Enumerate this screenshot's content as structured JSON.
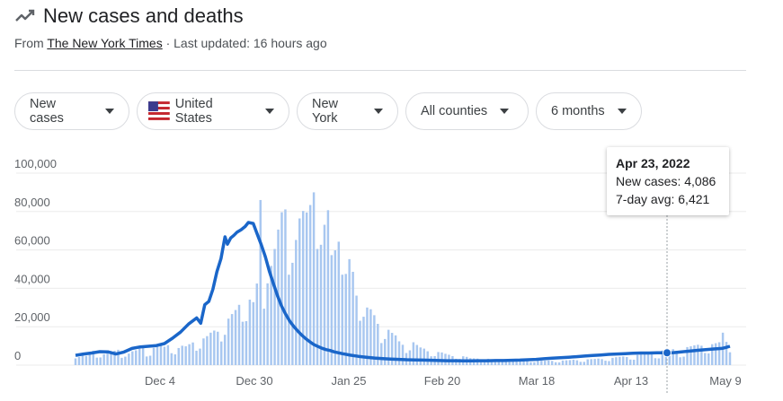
{
  "header": {
    "title": "New cases and deaths",
    "source_prefix": "From ",
    "source_link": "The New York Times",
    "updated": " · Last updated: 16 hours ago"
  },
  "filters": [
    {
      "label": "New cases",
      "icon": "chevron-down-icon"
    },
    {
      "label": "United States",
      "icon": "us-flag-icon"
    },
    {
      "label": "New York",
      "icon": "chevron-down-icon"
    },
    {
      "label": "All counties",
      "icon": "chevron-down-icon"
    },
    {
      "label": "6 months",
      "icon": "chevron-down-icon"
    }
  ],
  "tooltip": {
    "date": "Apr 23, 2022",
    "new_cases": "New cases: 4,086",
    "avg": "7-day avg: 6,421"
  },
  "colors": {
    "bar": "#a8c7f0",
    "line": "#1a66c9",
    "grid": "#ebebeb"
  },
  "chart_data": {
    "type": "bar",
    "title": "New cases and deaths",
    "ylim": [
      0,
      100000
    ],
    "yticks": [
      "0",
      "20,000",
      "40,000",
      "60,000",
      "80,000",
      "100,000"
    ],
    "xticks": [
      "Dec 4",
      "Dec 30",
      "Jan 25",
      "Feb 20",
      "Mar 18",
      "Apr 13",
      "May 9"
    ],
    "daily_cases": [
      3500,
      4200,
      5300,
      4800,
      6100,
      7400,
      3900,
      4000,
      5700,
      6800,
      6500,
      7500,
      8000,
      3800,
      4400,
      6000,
      7200,
      7700,
      8900,
      9800,
      4500,
      4900,
      9000,
      10500,
      11200,
      9600,
      10400,
      6200,
      5600,
      8900,
      10100,
      9800,
      10900,
      11800,
      7500,
      8600,
      13900,
      15100,
      16900,
      18000,
      17400,
      12300,
      15800,
      24200,
      26600,
      28700,
      31400,
      22600,
      22900,
      34100,
      32800,
      42500,
      86000,
      29400,
      42600,
      51700,
      60500,
      70600,
      79600,
      81100,
      47100,
      53300,
      65200,
      76400,
      80300,
      79500,
      83400,
      90000,
      60500,
      62700,
      73100,
      80700,
      57300,
      59800,
      64300,
      47100,
      47500,
      55200,
      48600,
      36200,
      23100,
      25200,
      30000,
      29100,
      26000,
      21500,
      11500,
      13600,
      18400,
      16800,
      15500,
      12400,
      10600,
      6300,
      7700,
      11900,
      10500,
      9200,
      8600,
      7200,
      4600,
      4700,
      6800,
      6600,
      5900,
      5400,
      4700,
      3300,
      3200,
      4600,
      4300,
      3600,
      3500,
      3400,
      2300,
      2200,
      3300,
      2900,
      2800,
      2700,
      2500,
      1700,
      1600,
      2500,
      2400,
      2400,
      2300,
      2200,
      1500,
      1500,
      2400,
      2300,
      2300,
      2400,
      2200,
      1500,
      1400,
      2400,
      2500,
      2600,
      2800,
      2500,
      1700,
      1700,
      3000,
      3100,
      3200,
      3400,
      3100,
      2300,
      2100,
      3800,
      4100,
      4300,
      4500,
      4200,
      2900,
      2800,
      5300,
      5600,
      5800,
      6400,
      5700,
      3600,
      3500,
      7600,
      7800,
      7900,
      8300,
      7400,
      4086,
      4400,
      9400,
      9800,
      10300,
      10600,
      10100,
      6300,
      6100,
      10900,
      11400,
      11900,
      16900,
      12100,
      6700
    ],
    "avg_series": [
      [
        0,
        5100
      ],
      [
        10,
        5800
      ],
      [
        20,
        6300
      ],
      [
        30,
        7000
      ],
      [
        40,
        6900
      ],
      [
        50,
        5800
      ],
      [
        60,
        6800
      ],
      [
        70,
        8700
      ],
      [
        80,
        9500
      ],
      [
        90,
        9800
      ],
      [
        100,
        10200
      ],
      [
        110,
        11200
      ],
      [
        120,
        14000
      ],
      [
        130,
        17200
      ],
      [
        140,
        21400
      ],
      [
        150,
        24600
      ],
      [
        155,
        21800
      ],
      [
        160,
        31500
      ],
      [
        165,
        33200
      ],
      [
        170,
        39500
      ],
      [
        175,
        48700
      ],
      [
        180,
        55400
      ],
      [
        185,
        66800
      ],
      [
        188,
        63000
      ],
      [
        192,
        66200
      ],
      [
        196,
        67600
      ],
      [
        200,
        69300
      ],
      [
        205,
        70500
      ],
      [
        210,
        72200
      ],
      [
        214,
        74300
      ],
      [
        220,
        73800
      ],
      [
        225,
        68200
      ],
      [
        230,
        62600
      ],
      [
        235,
        56400
      ],
      [
        240,
        48800
      ],
      [
        245,
        42400
      ],
      [
        250,
        36100
      ],
      [
        255,
        30800
      ],
      [
        260,
        26600
      ],
      [
        265,
        23000
      ],
      [
        270,
        20200
      ],
      [
        275,
        17800
      ],
      [
        280,
        15600
      ],
      [
        285,
        13800
      ],
      [
        290,
        12200
      ],
      [
        295,
        10700
      ],
      [
        300,
        9700
      ],
      [
        305,
        8800
      ],
      [
        310,
        8100
      ],
      [
        315,
        7600
      ],
      [
        320,
        6900
      ],
      [
        330,
        6000
      ],
      [
        340,
        5200
      ],
      [
        350,
        4600
      ],
      [
        360,
        4100
      ],
      [
        370,
        3700
      ],
      [
        380,
        3400
      ],
      [
        390,
        3200
      ],
      [
        400,
        3000
      ],
      [
        410,
        2800
      ],
      [
        420,
        2700
      ],
      [
        430,
        2600
      ],
      [
        440,
        2500
      ],
      [
        450,
        2400
      ],
      [
        460,
        2300
      ],
      [
        470,
        2300
      ],
      [
        480,
        2200
      ],
      [
        490,
        2200
      ],
      [
        500,
        2300
      ],
      [
        510,
        2300
      ],
      [
        520,
        2400
      ],
      [
        530,
        2400
      ],
      [
        540,
        2500
      ],
      [
        550,
        2600
      ],
      [
        560,
        2800
      ],
      [
        570,
        3000
      ],
      [
        580,
        3300
      ],
      [
        590,
        3600
      ],
      [
        600,
        3900
      ],
      [
        610,
        4100
      ],
      [
        620,
        4400
      ],
      [
        630,
        4700
      ],
      [
        640,
        5000
      ],
      [
        650,
        5300
      ],
      [
        660,
        5600
      ],
      [
        670,
        5800
      ],
      [
        680,
        6000
      ],
      [
        690,
        6200
      ],
      [
        700,
        6300
      ],
      [
        710,
        6300
      ],
      [
        720,
        6400
      ],
      [
        730,
        6421
      ],
      [
        740,
        6500
      ],
      [
        750,
        6900
      ],
      [
        760,
        7300
      ],
      [
        770,
        7700
      ],
      [
        780,
        8100
      ],
      [
        790,
        8400
      ],
      [
        800,
        8700
      ],
      [
        805,
        9200
      ],
      [
        810,
        9800
      ]
    ]
  }
}
